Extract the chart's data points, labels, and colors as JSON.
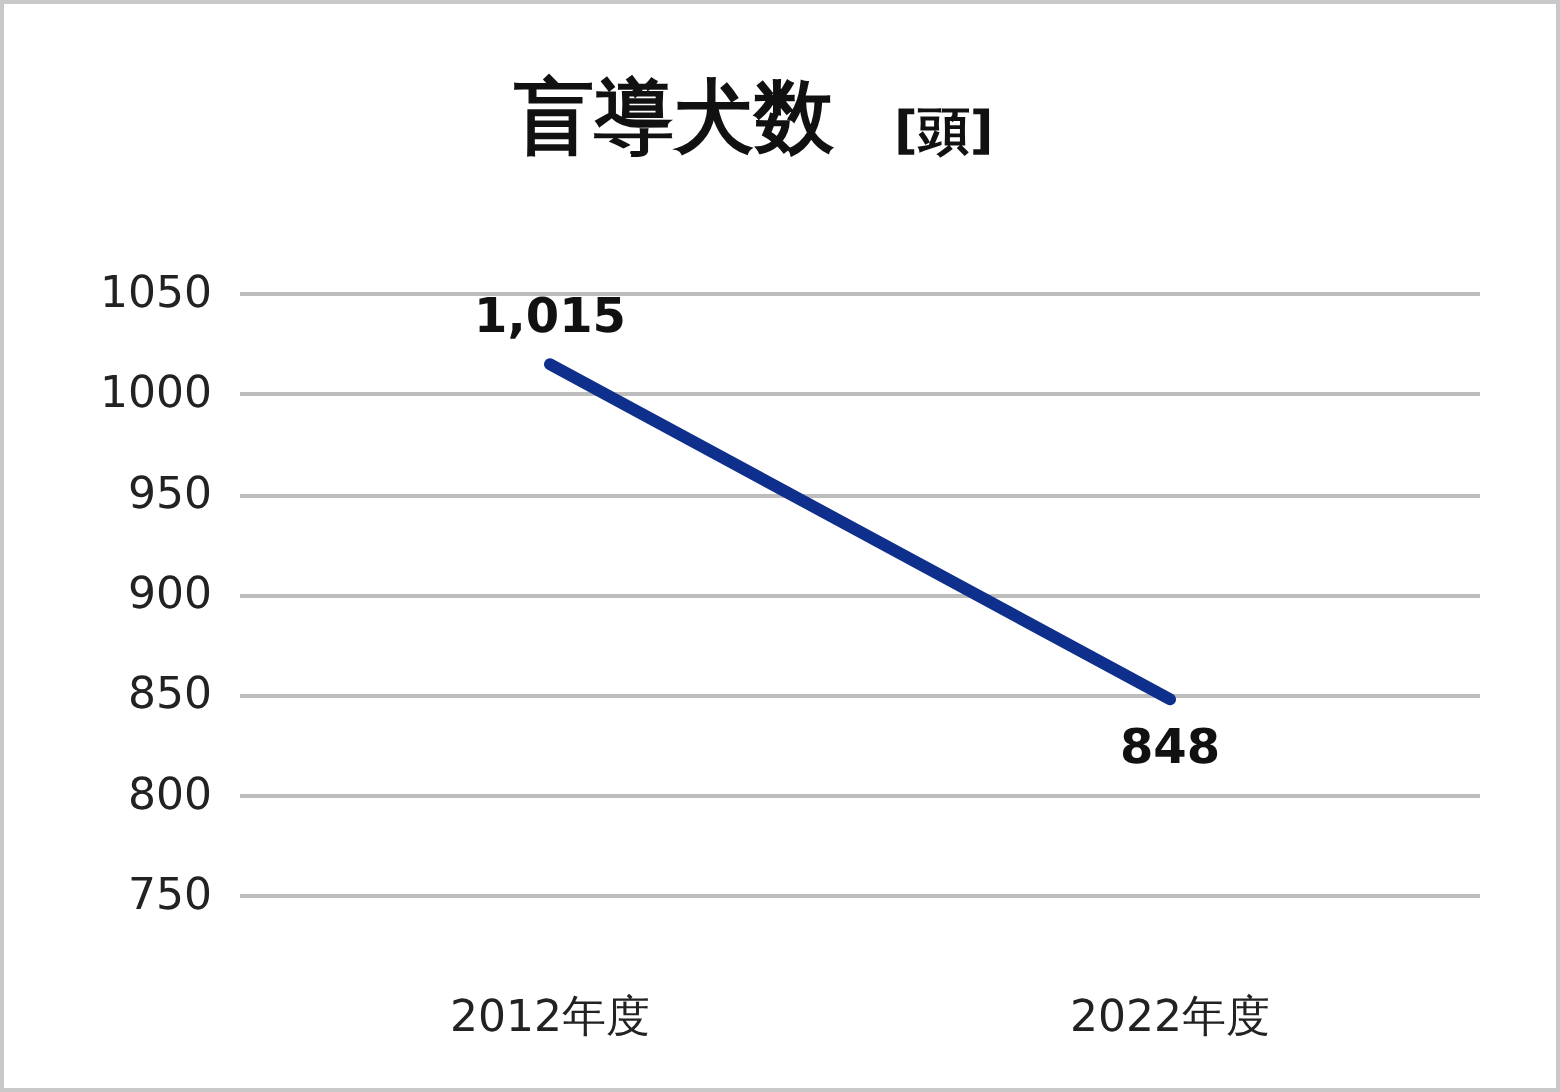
{
  "chart_data": {
    "type": "line",
    "title": "盲導犬数",
    "subtitle": "[頭]",
    "categories": [
      "2012年度",
      "2022年度"
    ],
    "series": [
      {
        "color": "#0f2f8c",
        "values": [
          1015,
          848
        ],
        "value_labels": [
          "1,015",
          "848"
        ]
      }
    ],
    "ylim": [
      750,
      1050
    ],
    "yticks": [
      750,
      800,
      850,
      900,
      950,
      1000,
      1050
    ],
    "grid": "y",
    "marker": "none",
    "line_style": "solid"
  }
}
